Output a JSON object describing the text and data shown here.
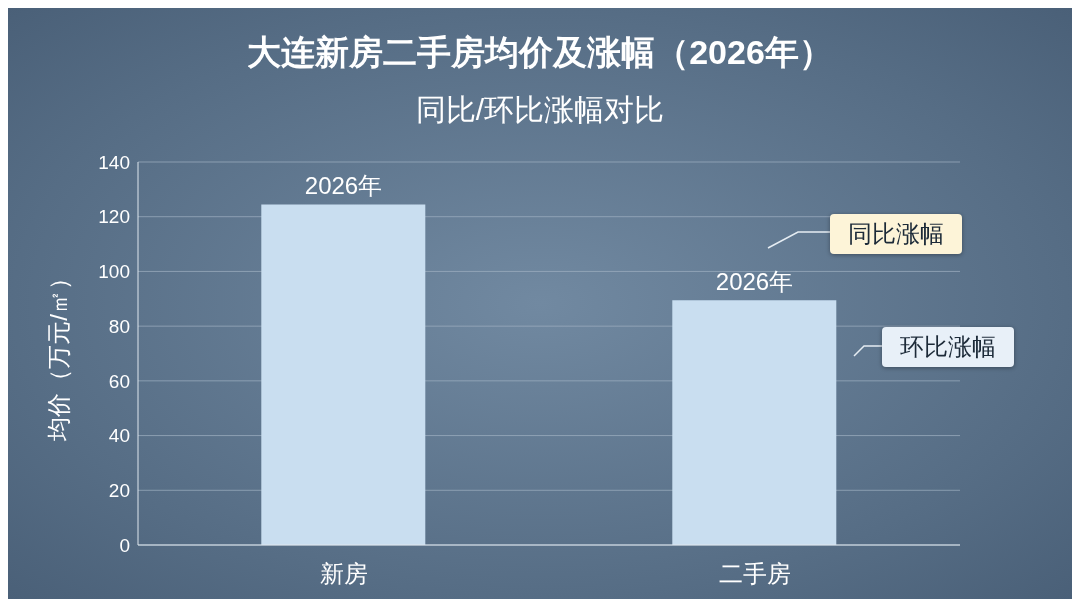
{
  "chart_data": {
    "type": "bar",
    "title": "大连新房二手房均价及涨幅（2026年）",
    "subtitle": "同比/环比涨幅对比",
    "ylabel": "均价（万元/㎡）",
    "categories": [
      "新房",
      "二手房"
    ],
    "values": [
      124.5,
      89.5
    ],
    "color": "#c9def0",
    "ylim": [
      0,
      140
    ],
    "yticks": [
      0,
      20,
      40,
      60,
      80,
      100,
      120,
      140
    ],
    "grid": "y",
    "annotations": [
      {
        "text": "2026年",
        "x": "新房",
        "y": 124.5
      },
      {
        "text": "2026年",
        "x": "二手房",
        "y": 89.5
      },
      "同比涨幅",
      "环比涨幅"
    ]
  }
}
